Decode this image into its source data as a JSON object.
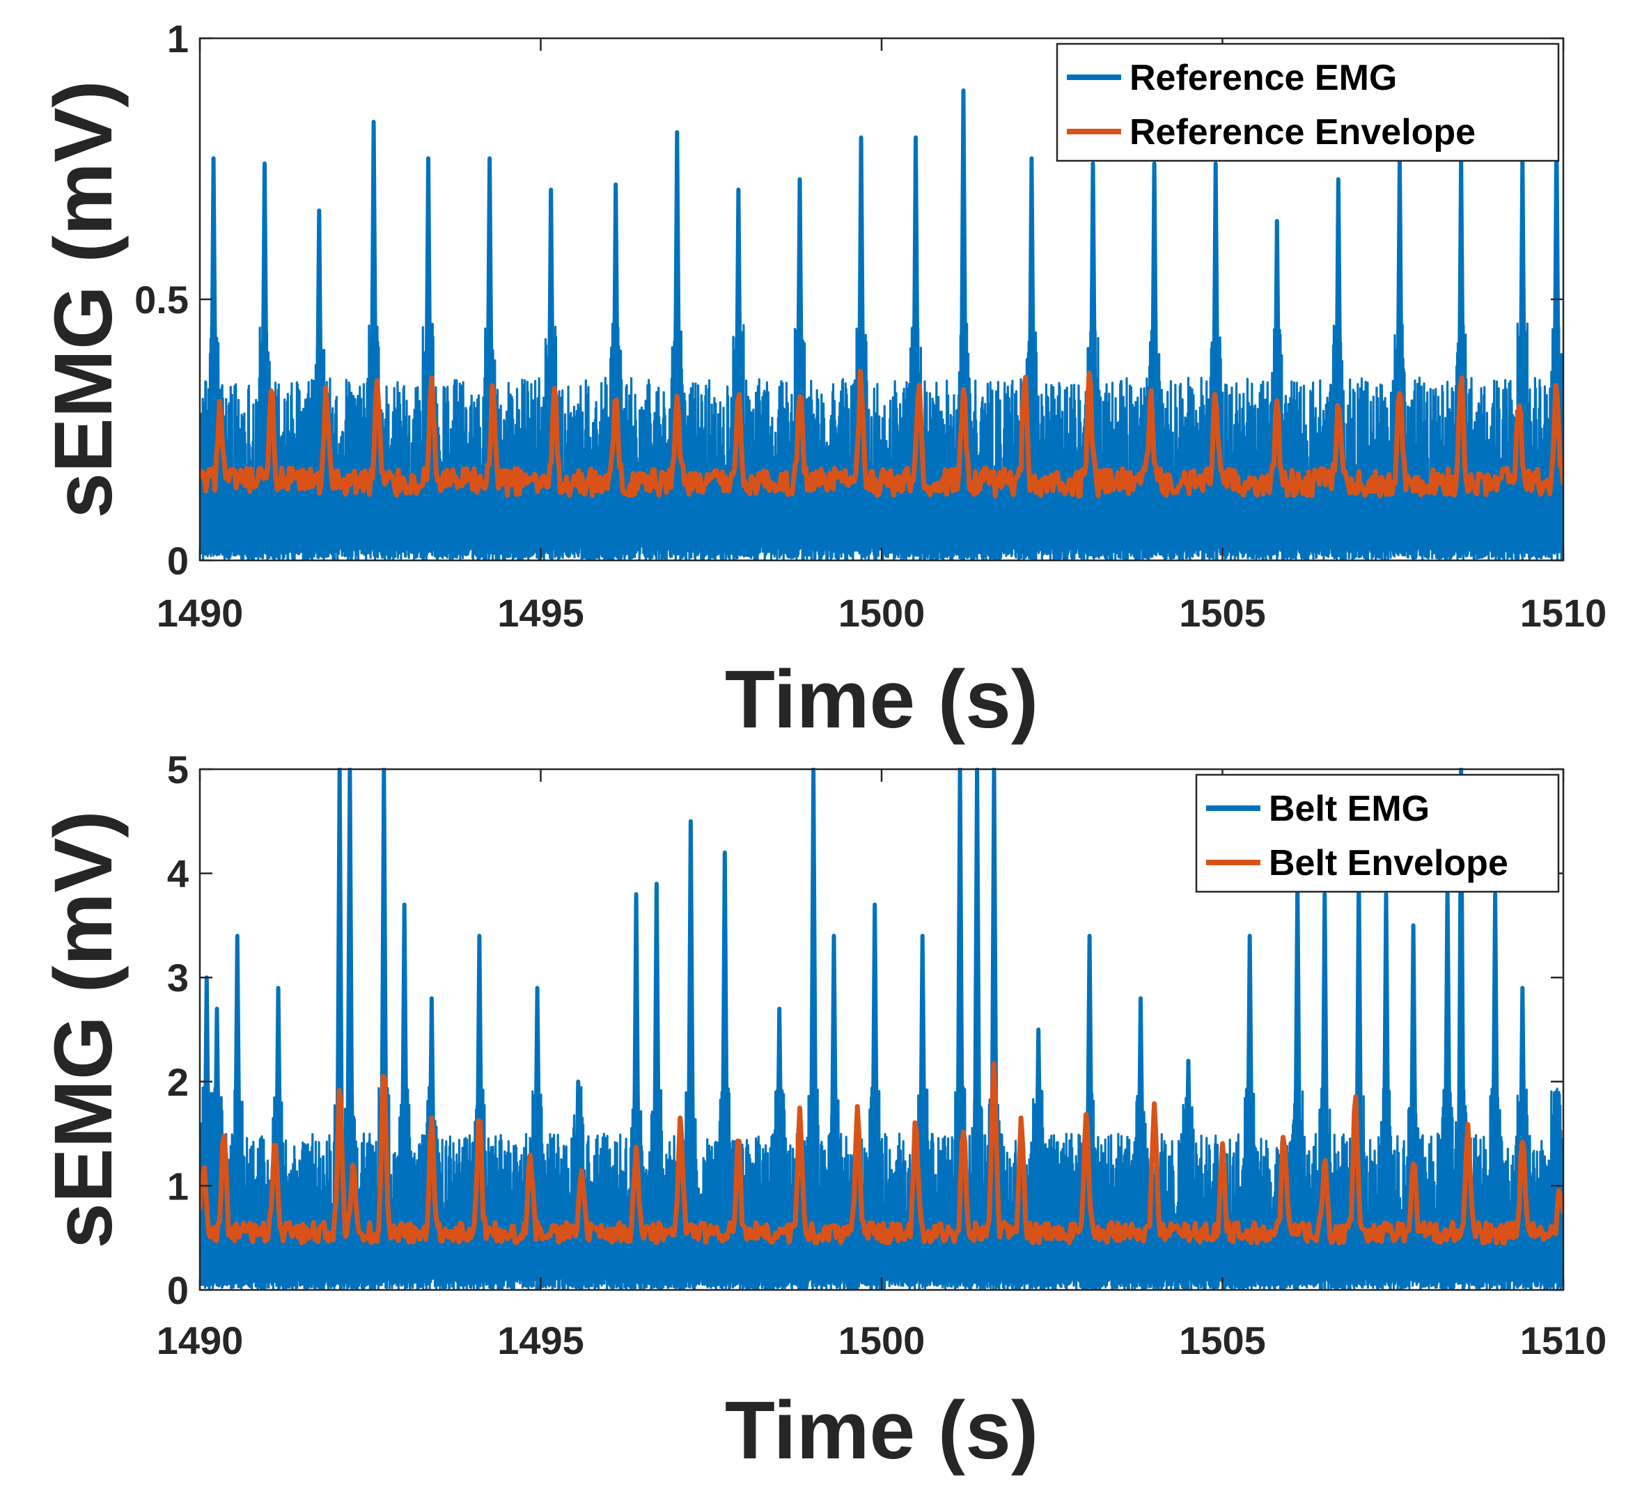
{
  "chart_data": [
    {
      "type": "line",
      "title": "",
      "xlabel": "Time (s)",
      "ylabel": "sEMG (mV)",
      "xlim": [
        1490,
        1510
      ],
      "ylim": [
        0,
        1
      ],
      "xticks": [
        "1490",
        "1495",
        "1500",
        "1505",
        "1510"
      ],
      "yticks": [
        "0",
        "0.5",
        "1"
      ],
      "legend_position": "top-right",
      "colors": {
        "emg": "#0072BD",
        "envelope": "#D95319"
      },
      "series": [
        {
          "name": "Reference EMG",
          "kind": "raw",
          "baseline_max": 0.35,
          "peaks_x": [
            1490.2,
            1490.95,
            1491.75,
            1492.55,
            1493.35,
            1494.25,
            1495.15,
            1496.1,
            1497.0,
            1497.9,
            1498.8,
            1499.7,
            1500.5,
            1501.2,
            1502.2,
            1503.1,
            1504.0,
            1504.9,
            1505.8,
            1506.7,
            1507.6,
            1508.5,
            1509.4,
            1509.9
          ],
          "peaks_y": [
            0.77,
            0.76,
            0.67,
            0.84,
            0.77,
            0.77,
            0.71,
            0.72,
            0.82,
            0.71,
            0.73,
            0.81,
            0.81,
            0.9,
            0.77,
            0.76,
            0.76,
            0.76,
            0.65,
            0.73,
            0.77,
            0.77,
            0.77,
            0.82
          ]
        },
        {
          "name": "Reference Envelope",
          "kind": "envelope",
          "baseline": 0.15,
          "peaks_x": [
            1490.3,
            1491.05,
            1491.85,
            1492.6,
            1493.4,
            1494.3,
            1495.2,
            1496.1,
            1497.0,
            1497.9,
            1498.8,
            1499.7,
            1500.55,
            1501.2,
            1502.1,
            1503.05,
            1503.95,
            1504.9,
            1505.8,
            1506.7,
            1507.6,
            1508.5,
            1509.35,
            1509.9
          ],
          "peaks_y": [
            0.3,
            0.32,
            0.32,
            0.34,
            0.35,
            0.32,
            0.32,
            0.3,
            0.33,
            0.32,
            0.33,
            0.35,
            0.33,
            0.32,
            0.35,
            0.34,
            0.31,
            0.31,
            0.3,
            0.31,
            0.32,
            0.34,
            0.32,
            0.34
          ]
        }
      ]
    },
    {
      "type": "line",
      "title": "",
      "xlabel": "Time (s)",
      "ylabel": "sEMG (mV)",
      "xlim": [
        1490,
        1510
      ],
      "ylim": [
        0,
        5
      ],
      "xticks": [
        "1490",
        "1495",
        "1500",
        "1505",
        "1510"
      ],
      "yticks": [
        "0",
        "1",
        "2",
        "3",
        "4",
        "5"
      ],
      "legend_position": "top-right",
      "colors": {
        "emg": "#0072BD",
        "envelope": "#D95319"
      },
      "series": [
        {
          "name": "Belt EMG",
          "kind": "raw",
          "baseline_max": 1.5,
          "peaks_x": [
            1490.1,
            1490.25,
            1490.55,
            1491.15,
            1492.05,
            1492.2,
            1492.7,
            1493.0,
            1493.4,
            1494.1,
            1494.95,
            1495.55,
            1496.4,
            1496.7,
            1497.2,
            1497.7,
            1498.5,
            1499.0,
            1499.3,
            1499.9,
            1500.6,
            1501.15,
            1501.4,
            1501.65,
            1502.3,
            1503.05,
            1503.8,
            1504.5,
            1505.4,
            1506.1,
            1506.5,
            1507.0,
            1507.4,
            1507.8,
            1508.3,
            1508.5,
            1509.0,
            1509.4,
            1509.9
          ],
          "peaks_y": [
            3.0,
            2.7,
            3.4,
            2.9,
            5.0,
            5.0,
            5.0,
            3.7,
            2.8,
            3.4,
            2.9,
            2.0,
            3.8,
            3.9,
            4.5,
            4.2,
            2.7,
            5.0,
            3.4,
            3.7,
            3.4,
            5.0,
            5.0,
            5.0,
            2.5,
            3.4,
            2.8,
            2.2,
            3.4,
            3.9,
            3.8,
            4.0,
            3.8,
            3.5,
            3.9,
            5.0,
            3.8,
            2.9,
            1.9
          ]
        },
        {
          "name": "Belt Envelope",
          "kind": "envelope",
          "baseline": 0.55,
          "peaks_x": [
            1490.05,
            1490.35,
            1491.1,
            1492.05,
            1492.25,
            1492.7,
            1493.4,
            1494.1,
            1494.85,
            1495.6,
            1496.4,
            1497.05,
            1497.9,
            1498.8,
            1499.65,
            1500.5,
            1501.2,
            1501.65,
            1502.05,
            1503.0,
            1504.0,
            1505.0,
            1505.9,
            1506.5,
            1506.95,
            1507.8,
            1508.6,
            1509.4,
            1509.95
          ],
          "peaks_y": [
            1.2,
            1.5,
            1.5,
            1.9,
            1.2,
            2.1,
            1.7,
            1.6,
            1.3,
            1.1,
            1.3,
            1.7,
            1.4,
            1.7,
            1.7,
            1.6,
            1.6,
            2.2,
            1.6,
            1.7,
            1.7,
            1.4,
            1.5,
            1.2,
            1.9,
            1.3,
            1.6,
            1.5,
            0.9
          ]
        }
      ]
    }
  ]
}
